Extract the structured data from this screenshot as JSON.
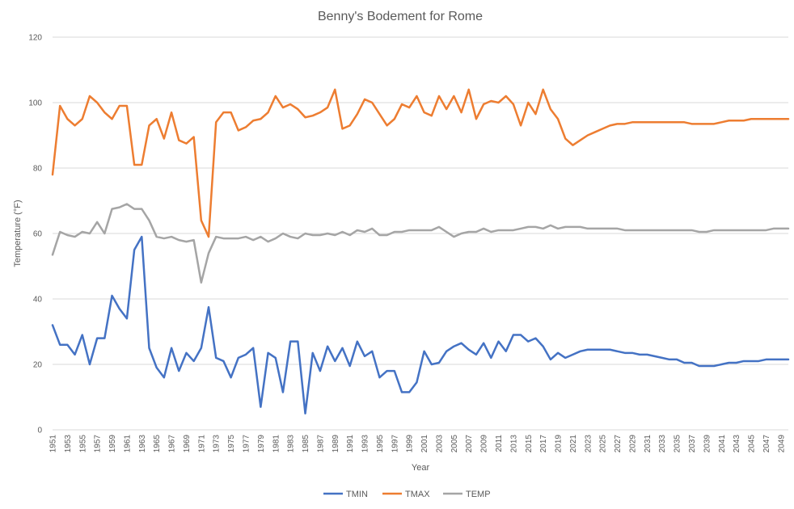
{
  "chart_data": {
    "type": "line",
    "title": "Benny's Bodement for Rome",
    "xlabel": "Year",
    "ylabel": "Temperature (°F)",
    "ylim": [
      0,
      120
    ],
    "yticks": [
      0,
      20,
      40,
      60,
      80,
      100,
      120
    ],
    "x_start": 1951,
    "x_end": 2050,
    "xtick_labels": [
      "1951",
      "1953",
      "1955",
      "1957",
      "1959",
      "1961",
      "1963",
      "1965",
      "1967",
      "1969",
      "1971",
      "1973",
      "1975",
      "1977",
      "1979",
      "1981",
      "1983",
      "1985",
      "1987",
      "1989",
      "1991",
      "1993",
      "1995",
      "1997",
      "1999",
      "2001",
      "2003",
      "2005",
      "2007",
      "2009",
      "2011",
      "2013",
      "2015",
      "2017",
      "2019",
      "2021",
      "2023",
      "2025",
      "2027",
      "2029",
      "2031",
      "2033",
      "2035",
      "2037",
      "2039",
      "2041",
      "2043",
      "2045",
      "2047",
      "2049"
    ],
    "grid": true,
    "legend": "bottom",
    "series": [
      {
        "name": "TMIN",
        "color": "#4472c4",
        "values": [
          32,
          26,
          26,
          23,
          29,
          20,
          28,
          28,
          41,
          37,
          34,
          55,
          59,
          25,
          19,
          16,
          25,
          18,
          23.5,
          21,
          25,
          37.5,
          22,
          21,
          16,
          22,
          23,
          25,
          7,
          23.5,
          22,
          11.5,
          27,
          27,
          5,
          23.5,
          18,
          25.5,
          21,
          25,
          19.5,
          27,
          22.5,
          24,
          16,
          18,
          18,
          11.5,
          11.5,
          14.5,
          24,
          20,
          20.5,
          24,
          25.5,
          26.5,
          24.5,
          23,
          26.5,
          22,
          27,
          24,
          29,
          29,
          27,
          28,
          25.5,
          21.5,
          23.5,
          22,
          23,
          24,
          24.5,
          24.5,
          24.5,
          24.5,
          24,
          23.5,
          23.5,
          23,
          23,
          22.5,
          22,
          21.5,
          21.5,
          20.5,
          20.5,
          19.5,
          19.5,
          19.5,
          20,
          20.5,
          20.5,
          21,
          21,
          21,
          21.5,
          21.5,
          21.5,
          21.5
        ]
      },
      {
        "name": "TMAX",
        "color": "#ed7d31",
        "values": [
          78,
          99,
          95,
          93,
          95,
          102,
          100,
          97,
          95,
          99,
          99,
          81,
          81,
          93,
          95,
          89,
          97,
          88.5,
          87.5,
          89.5,
          64,
          59,
          94,
          97,
          97,
          91.5,
          92.5,
          94.5,
          95,
          97,
          102,
          98.5,
          99.5,
          98,
          95.5,
          96,
          97,
          98.5,
          104,
          92,
          93,
          96.5,
          101,
          100,
          96.5,
          93,
          95,
          99.5,
          98.5,
          102,
          97,
          96,
          102,
          98,
          102,
          97,
          104,
          95,
          99.5,
          100.5,
          100,
          102,
          99.5,
          93,
          100,
          96.5,
          104,
          98,
          95,
          89,
          87,
          88.5,
          90,
          91,
          92,
          93,
          93.5,
          93.5,
          94,
          94,
          94,
          94,
          94,
          94,
          94,
          94,
          93.5,
          93.5,
          93.5,
          93.5,
          94,
          94.5,
          94.5,
          94.5,
          95,
          95,
          95,
          95,
          95,
          95
        ]
      },
      {
        "name": "TEMP",
        "color": "#a5a5a5",
        "values": [
          53.5,
          60.5,
          59.5,
          59,
          60.5,
          60,
          63.5,
          60,
          67.5,
          68,
          69,
          67.5,
          67.5,
          64,
          59,
          58.5,
          59,
          58,
          57.5,
          58,
          45,
          54,
          59,
          58.5,
          58.5,
          58.5,
          59,
          58,
          59,
          57.5,
          58.5,
          60,
          59,
          58.5,
          60,
          59.5,
          59.5,
          60,
          59.5,
          60.5,
          59.5,
          61,
          60.5,
          61.5,
          59.5,
          59.5,
          60.5,
          60.5,
          61,
          61,
          61,
          61,
          62,
          60.5,
          59,
          60,
          60.5,
          60.5,
          61.5,
          60.5,
          61,
          61,
          61,
          61.5,
          62,
          62,
          61.5,
          62.5,
          61.5,
          62,
          62,
          62,
          61.5,
          61.5,
          61.5,
          61.5,
          61.5,
          61,
          61,
          61,
          61,
          61,
          61,
          61,
          61,
          61,
          61,
          60.5,
          60.5,
          61,
          61,
          61,
          61,
          61,
          61,
          61,
          61,
          61.5,
          61.5,
          61.5
        ]
      }
    ]
  }
}
